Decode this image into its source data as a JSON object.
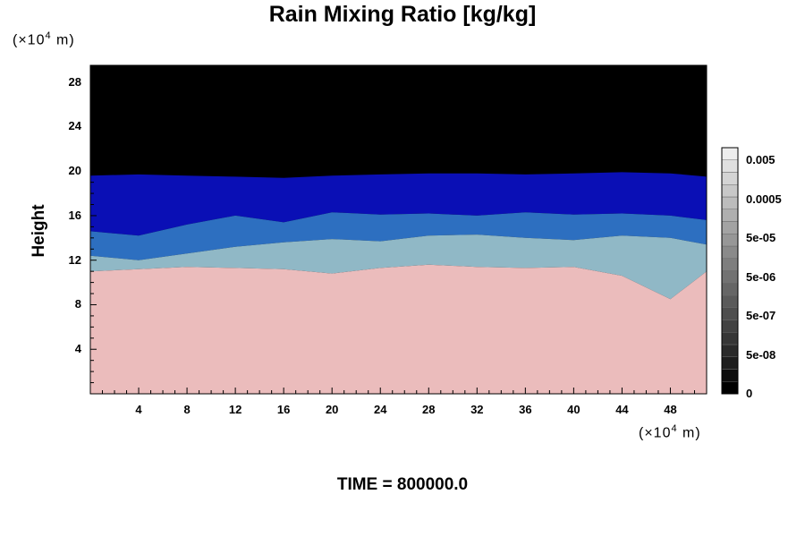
{
  "title": "Rain Mixing Ratio [kg/kg]",
  "y_unit": {
    "prefix": "(×10",
    "exp": "4",
    "suffix": " m)"
  },
  "x_unit": {
    "prefix": "(×10",
    "exp": "4",
    "suffix": " m)"
  },
  "time_label": "TIME = 800000.0",
  "chart_data": {
    "type": "heatmap",
    "title": "Rain Mixing Ratio [kg/kg]",
    "ylabel": "Height",
    "xlabel": "",
    "xlim": [
      0,
      51
    ],
    "ylim": [
      0,
      29.5
    ],
    "x_ticks": [
      4,
      8,
      12,
      16,
      20,
      24,
      28,
      32,
      36,
      40,
      44,
      48
    ],
    "y_ticks": [
      4,
      8,
      12,
      16,
      20,
      24,
      28
    ],
    "colorbar": {
      "labels": [
        "0",
        "5e-08",
        "5e-07",
        "5e-06",
        "5e-05",
        "0.0005",
        "0.005"
      ],
      "colors": [
        "#000000",
        "#0d0d0d",
        "#1d1d1d",
        "#2a2a2a",
        "#363636",
        "#424242",
        "#4e4e4e",
        "#5a5a5a",
        "#666666",
        "#727272",
        "#7e7e7e",
        "#8a8a8a",
        "#979797",
        "#a3a3a3",
        "#afafaf",
        "#bcbcbc",
        "#c8c8c8",
        "#d4d4d4",
        "#e0e0e0",
        "#ededed"
      ]
    },
    "field": {
      "colors": {
        "top": "#000000",
        "upper": "#0a0fb5",
        "middle": "#2d6fc0",
        "lower": "#90b8c6",
        "surface": "#ebbcbc"
      },
      "boundaries": {
        "x": [
          0,
          4,
          8,
          12,
          16,
          20,
          24,
          28,
          32,
          36,
          40,
          44,
          48,
          51
        ],
        "top_of_rain": [
          19.6,
          19.7,
          19.6,
          19.5,
          19.4,
          19.6,
          19.7,
          19.8,
          19.8,
          19.7,
          19.8,
          19.9,
          19.8,
          19.5
        ],
        "deep_blue_base": [
          14.6,
          14.2,
          15.2,
          16.0,
          15.4,
          16.3,
          16.1,
          16.2,
          16.0,
          16.3,
          16.1,
          16.2,
          16.0,
          15.6
        ],
        "mid_base": [
          12.4,
          12.0,
          12.6,
          13.2,
          13.6,
          13.9,
          13.7,
          14.2,
          14.3,
          14.0,
          13.8,
          14.2,
          14.0,
          13.4
        ],
        "surface_top": [
          11.0,
          11.2,
          11.4,
          11.3,
          11.2,
          10.8,
          11.3,
          11.6,
          11.4,
          11.3,
          11.4,
          10.6,
          8.5,
          11.0
        ]
      }
    }
  }
}
